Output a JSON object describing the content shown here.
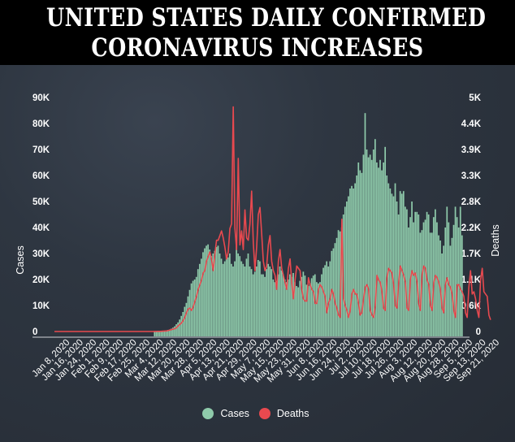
{
  "header": {
    "title_line1": "UNITED STATES DAILY CONFIRMED",
    "title_line2": "CORONAVIRUS INCREASES"
  },
  "colors": {
    "cases": "#8fcbab",
    "deaths": "#e8494f",
    "background": "#2e3641",
    "header_bg": "#000000"
  },
  "chart_data": {
    "type": "bar+line",
    "title": "United States Daily Confirmed Coronavirus Increases",
    "ylabel_left": "Cases",
    "ylabel_right": "Deaths",
    "ylim_left": [
      0,
      90000
    ],
    "ylim_right": [
      0,
      5000
    ],
    "yticks_left": [
      "0",
      "10K",
      "20K",
      "30K",
      "40K",
      "50K",
      "60K",
      "70K",
      "80K",
      "90K"
    ],
    "yticks_right": [
      "0",
      "0.6K",
      "1.1K",
      "1.7K",
      "2.2K",
      "2.8K",
      "3.3K",
      "3.9K",
      "4.4K",
      "5K"
    ],
    "xticks": [
      "Jan 8, 2020",
      "Jan 16, 2020",
      "Jan 24, 2020",
      "Feb 1, 2020",
      "Feb 9, 2020",
      "Feb 17, 2020",
      "Feb 25, 2020",
      "Mar 4, 2020",
      "Mar 12, 2020",
      "Mar 20, 2020",
      "Mar 28, 2020",
      "Apr 5, 2020",
      "Apr 13, 2020",
      "Apr 21, 2020",
      "Apr 29, 2020",
      "May 7, 2020",
      "May 15, 2020",
      "May 23, 2020",
      "May 31, 2020",
      "Jun 8, 2020",
      "Jun 16, 2020",
      "Jun 24, 2020",
      "Jul 2, 2020",
      "Jul 10, 2020",
      "Jul 18, 2020",
      "Jul 26, 2020",
      "Aug 3, 2020",
      "Aug 12, 2020",
      "Aug 20, 2020",
      "Aug 28, 2020",
      "Sep 5, 2020",
      "Sep 13, 2020",
      "Sep 21, 2020"
    ],
    "x_start": "Jan 1, 2020",
    "x_end": "Sep 22, 2020",
    "grid": false,
    "legend": [
      {
        "name": "Cases",
        "color": "#8fcbab"
      },
      {
        "name": "Deaths",
        "color": "#e8494f"
      }
    ],
    "legend_position": "bottom",
    "series_note": "daily values from Jan 1, 2020; values estimated from the figure",
    "series": [
      {
        "name": "Cases",
        "type": "bar",
        "axis": "left",
        "values": [
          0,
          0,
          0,
          0,
          0,
          0,
          0,
          0,
          0,
          0,
          0,
          0,
          0,
          0,
          0,
          0,
          0,
          0,
          0,
          0,
          0,
          0,
          0,
          0,
          0,
          0,
          0,
          0,
          0,
          0,
          0,
          0,
          0,
          0,
          0,
          0,
          0,
          0,
          0,
          0,
          0,
          0,
          0,
          0,
          0,
          0,
          0,
          0,
          0,
          0,
          0,
          0,
          0,
          0,
          0,
          0,
          0,
          0,
          0,
          0,
          50,
          80,
          100,
          150,
          200,
          250,
          350,
          450,
          600,
          800,
          1100,
          1500,
          2000,
          2800,
          3500,
          4600,
          6000,
          7500,
          9500,
          11000,
          13500,
          16000,
          18500,
          19500,
          20000,
          21000,
          24000,
          26000,
          28000,
          30500,
          32000,
          33000,
          33500,
          31500,
          29000,
          30000,
          31000,
          32500,
          33000,
          30000,
          28000,
          26000,
          27000,
          29000,
          28500,
          30000,
          26000,
          25000,
          27000,
          36000,
          30000,
          29000,
          27000,
          26000,
          25000,
          28000,
          30000,
          25000,
          24000,
          22000,
          23000,
          25000,
          27500,
          27000,
          22000,
          22000,
          21000,
          24000,
          26000,
          25000,
          24000,
          20000,
          19000,
          19500,
          22000,
          25000,
          23500,
          22000,
          20000,
          19000,
          20000,
          22000,
          21000,
          22500,
          19000,
          17500,
          17000,
          19500,
          21000,
          23000,
          21500,
          18000,
          17500,
          18500,
          20500,
          21500,
          22000,
          19000,
          18500,
          19000,
          22000,
          24500,
          25500,
          27000,
          25000,
          27000,
          31000,
          32000,
          34000,
          36000,
          39000,
          38500,
          40000,
          45000,
          48000,
          50000,
          52000,
          55000,
          56000,
          55000,
          57000,
          60000,
          65000,
          62000,
          61000,
          68000,
          84000,
          70000,
          67000,
          68000,
          66000,
          70000,
          74000,
          65000,
          63000,
          66000,
          62000,
          65000,
          71000,
          60000,
          57000,
          55000,
          53000,
          52000,
          57000,
          50000,
          45000,
          54000,
          53000,
          54000,
          48000,
          47000,
          40000,
          44000,
          50000,
          42000,
          46000,
          46000,
          45000,
          38000,
          39000,
          42000,
          43000,
          46000,
          45000,
          38000,
          38000,
          44000,
          47000,
          42000,
          37000,
          35000,
          30000,
          33000,
          40000,
          48000,
          42000,
          33000,
          36000,
          41000,
          48000,
          44000,
          40000,
          48000,
          37000
        ]
      },
      {
        "name": "Deaths",
        "type": "line",
        "axis": "right",
        "values": [
          0,
          0,
          0,
          0,
          0,
          0,
          0,
          0,
          0,
          0,
          0,
          0,
          0,
          0,
          0,
          0,
          0,
          0,
          0,
          0,
          0,
          0,
          0,
          0,
          0,
          0,
          0,
          0,
          0,
          0,
          0,
          0,
          0,
          0,
          0,
          0,
          0,
          0,
          0,
          0,
          0,
          0,
          0,
          0,
          0,
          0,
          0,
          0,
          0,
          0,
          0,
          0,
          0,
          0,
          0,
          0,
          0,
          0,
          0,
          0,
          1,
          2,
          3,
          4,
          5,
          8,
          10,
          12,
          20,
          30,
          40,
          50,
          60,
          80,
          120,
          150,
          180,
          230,
          300,
          400,
          480,
          500,
          450,
          520,
          640,
          750,
          900,
          1000,
          1100,
          1250,
          1300,
          1500,
          1600,
          1700,
          1550,
          1300,
          1650,
          1950,
          1950,
          2050,
          2150,
          2000,
          1800,
          1550,
          1700,
          2200,
          2300,
          4800,
          2200,
          1750,
          3700,
          1850,
          2150,
          1750,
          2600,
          2000,
          1950,
          2300,
          3000,
          1900,
          1300,
          1800,
          2500,
          2650,
          2100,
          1500,
          1300,
          1400,
          1850,
          2050,
          1500,
          1300,
          1200,
          900,
          1500,
          1750,
          1350,
          1200,
          1050,
          900,
          1350,
          1550,
          1050,
          700,
          1100,
          1400,
          1350,
          1300,
          900,
          700,
          650,
          650,
          1150,
          1000,
          900,
          850,
          600,
          600,
          900,
          1000,
          950,
          850,
          750,
          400,
          600,
          700,
          900,
          800,
          600,
          500,
          350,
          300,
          2400,
          700,
          550,
          450,
          300,
          450,
          800,
          900,
          800,
          800,
          600,
          350,
          400,
          700,
          950,
          1000,
          900,
          450,
          350,
          300,
          550,
          1200,
          1100,
          1050,
          850,
          500,
          450,
          1150,
          1350,
          1300,
          1250,
          1000,
          550,
          500,
          1050,
          1400,
          1300,
          1200,
          1050,
          500,
          450,
          1100,
          1300,
          1200,
          1250,
          1050,
          600,
          450,
          1200,
          1400,
          1350,
          1100,
          1000,
          550,
          450,
          1050,
          1200,
          1150,
          1050,
          900,
          500,
          400,
          1000,
          1150,
          1000,
          950,
          800,
          450,
          300,
          1000,
          1000,
          900,
          850,
          750,
          400,
          300,
          950,
          1300,
          800,
          850,
          700,
          450,
          300,
          1100,
          1350,
          850,
          800,
          750,
          350,
          250
        ]
      }
    ]
  }
}
